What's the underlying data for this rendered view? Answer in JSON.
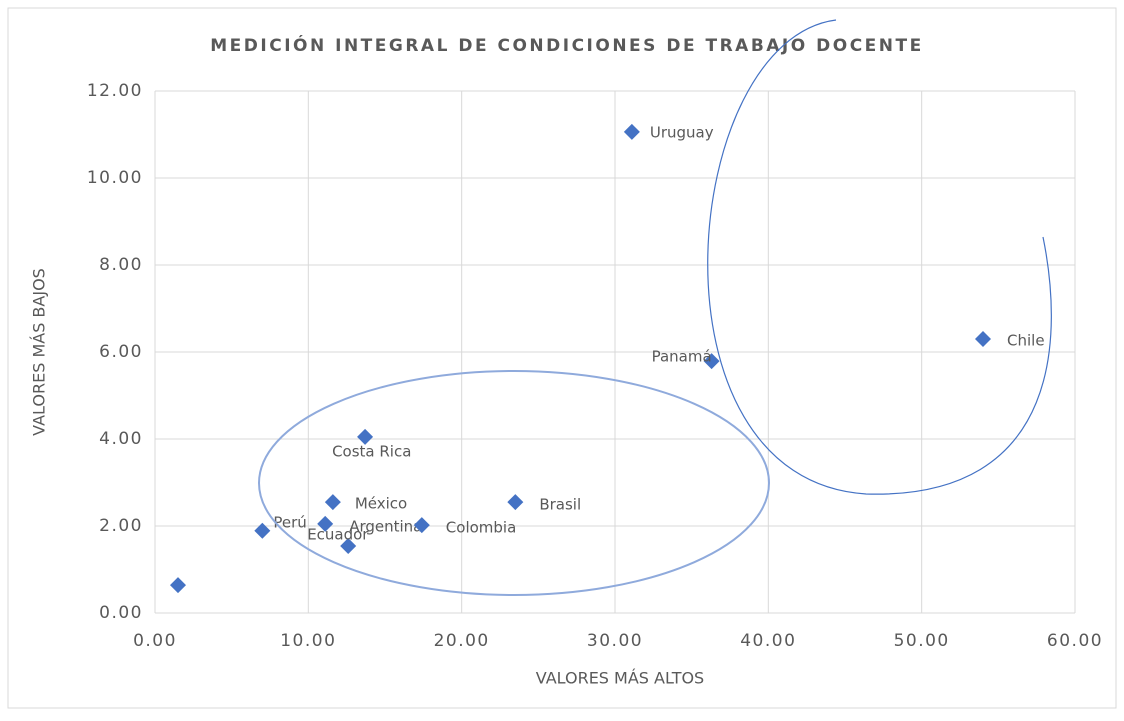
{
  "chart_data": {
    "type": "scatter",
    "title": "MEDICIÓN INTEGRAL DE CONDICIONES DE TRABAJO DOCENTE",
    "x_label": "VALORES MÁS ALTOS",
    "y_label": "VALORES MÁS BAJOS",
    "color": "#4472c4",
    "x": [
      1.5,
      7.0,
      12.6,
      11.1,
      11.6,
      13.7,
      17.4,
      23.5,
      31.1,
      36.3,
      54.0
    ],
    "values": [
      0.64,
      1.89,
      1.54,
      2.05,
      2.55,
      4.05,
      2.02,
      2.55,
      11.06,
      5.79,
      6.3
    ],
    "labels": [
      null,
      "Perú",
      "Ecuador",
      "Argentina",
      "México",
      "Costa Rica",
      "Colombia",
      "Brasil",
      "Uruguay",
      "Panamá",
      "Chile"
    ],
    "xlim": [
      0,
      60
    ],
    "xticks": [
      {
        "value": 0,
        "label": "0.00"
      },
      {
        "value": 10,
        "label": "10.00"
      },
      {
        "value": 20,
        "label": "20.00"
      },
      {
        "value": 30,
        "label": "30.00"
      },
      {
        "value": 40,
        "label": "40.00"
      },
      {
        "value": 50,
        "label": "50.00"
      },
      {
        "value": 60,
        "label": "60.00"
      }
    ],
    "ylim": [
      0,
      12
    ],
    "yticks": [
      {
        "value": 0,
        "label": "0.00"
      },
      {
        "value": 2,
        "label": "2.00"
      },
      {
        "value": 4,
        "label": "4.00"
      },
      {
        "value": 6,
        "label": "6.00"
      },
      {
        "value": 8,
        "label": "8.00"
      },
      {
        "value": 10,
        "label": "10.00"
      },
      {
        "value": 12,
        "label": "12.00"
      }
    ],
    "grid": true
  }
}
